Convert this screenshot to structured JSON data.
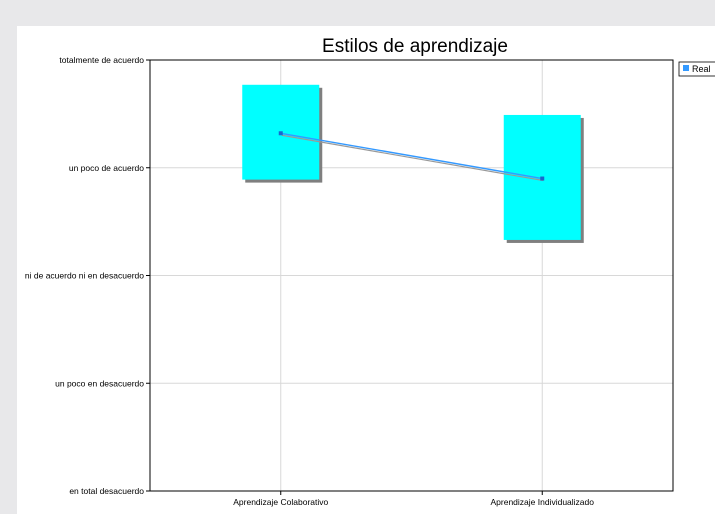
{
  "chart_data": {
    "type": "line",
    "title": "Estilos de aprendizaje",
    "categories": [
      "Aprendizaje Colaborativo",
      "Aprendizaje Individualizado"
    ],
    "y_ticks": [
      "en total desacuerdo",
      "un poco en desacuerdo",
      "ni de acuerdo ni en desacuerdo",
      "un poco de acuerdo",
      "totalmente de acuerdo"
    ],
    "ylim": [
      1,
      5
    ],
    "series": [
      {
        "name": "Real",
        "values": [
          4.32,
          3.9
        ]
      }
    ],
    "ranges": [
      {
        "category": "Aprendizaje Colaborativo",
        "low": 3.89,
        "high": 4.77
      },
      {
        "category": "Aprendizaje Individualizado",
        "low": 3.33,
        "high": 4.49
      }
    ],
    "grid": true,
    "legend_position": "top-right",
    "colors": {
      "series_line": "#3399ff",
      "series_marker": "#1a66cc",
      "range_box": "#00ffff",
      "box_shadow": "#7f7f7f",
      "grid": "#d8d8d8",
      "axis": "#000000"
    }
  }
}
